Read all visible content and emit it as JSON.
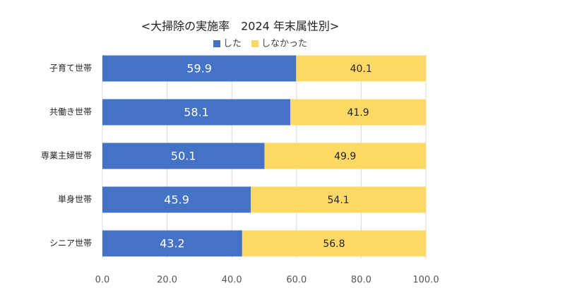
{
  "chart_data": {
    "type": "stacked-barh",
    "title": "<大掃除の実施率　2024 年末属性別>",
    "categories": [
      "子育て世帯",
      "共働き世帯",
      "専業主婦世帯",
      "単身世帯",
      "シニア世帯"
    ],
    "series": [
      {
        "name": "した",
        "color": "#4472c4",
        "values": [
          59.9,
          58.1,
          50.1,
          45.9,
          43.2
        ]
      },
      {
        "name": "しなかった",
        "color": "#ffd966",
        "values": [
          40.1,
          41.9,
          49.9,
          54.1,
          56.8
        ]
      }
    ],
    "xlim": [
      0,
      100
    ],
    "xticks": [
      {
        "value": 0,
        "label": "0.0"
      },
      {
        "value": 20,
        "label": "20.0"
      },
      {
        "value": 40,
        "label": "40.0"
      },
      {
        "value": 60,
        "label": "60.0"
      },
      {
        "value": 80,
        "label": "80.0"
      },
      {
        "value": 100,
        "label": "100.0"
      }
    ],
    "grid": true
  }
}
